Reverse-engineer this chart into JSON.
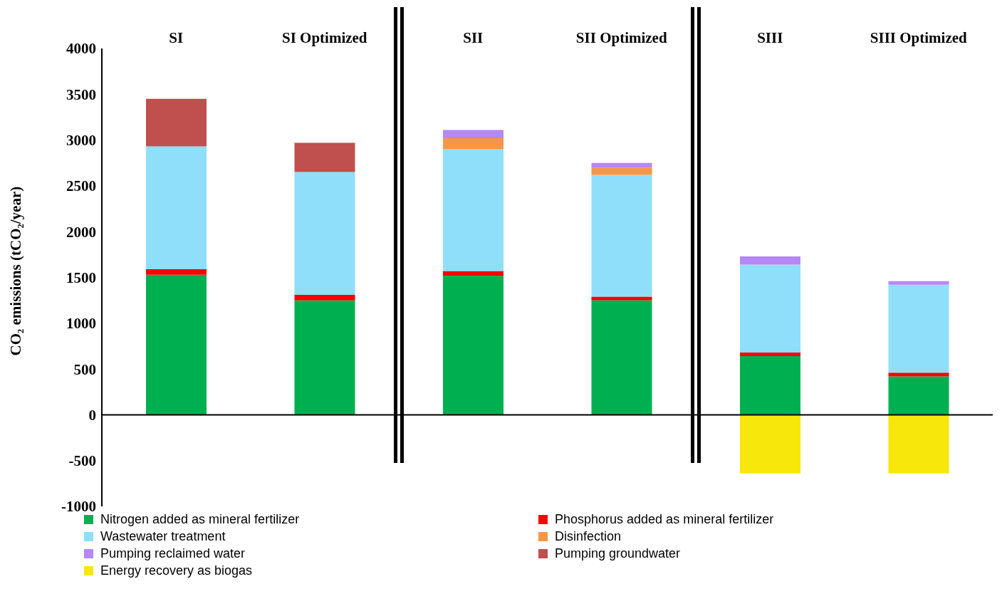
{
  "chart_data": {
    "type": "bar",
    "stacked": true,
    "ylabel": "CO₂ emissions (tCO₂/year)",
    "categories": [
      "SI",
      "SI Optimized",
      "SII",
      "SII Optimized",
      "SIII",
      "SIII Optimized"
    ],
    "series": [
      {
        "name": "Nitrogen added as mineral fertilizer",
        "color": "#00b050",
        "values": [
          1530,
          1250,
          1520,
          1250,
          640,
          420
        ]
      },
      {
        "name": "Phosphorus added as mineral fertilizer",
        "color": "#ff0000",
        "values": [
          60,
          60,
          50,
          40,
          40,
          40
        ]
      },
      {
        "name": "Wastewater treatment",
        "color": "#8fdffb",
        "values": [
          1340,
          1340,
          1330,
          1330,
          960,
          960
        ]
      },
      {
        "name": "Disinfection",
        "color": "#f79646",
        "values": [
          null,
          null,
          120,
          80,
          null,
          null
        ]
      },
      {
        "name": "Pumping reclaimed water",
        "color": "#b587f7",
        "values": [
          null,
          null,
          90,
          50,
          90,
          40
        ]
      },
      {
        "name": "Pumping groundwater",
        "color": "#c0504d",
        "values": [
          520,
          320,
          null,
          null,
          null,
          null
        ]
      },
      {
        "name": "Energy recovery as biogas",
        "color": "#f7e70a",
        "values": [
          null,
          null,
          null,
          null,
          -640,
          -640
        ]
      }
    ],
    "ylim": [
      -1000,
      4000
    ],
    "yticks": [
      -1000,
      -500,
      0,
      500,
      1000,
      1500,
      2000,
      2500,
      3000,
      3500,
      4000
    ],
    "ref_lines": [
      {
        "axis": "y",
        "value": 0
      }
    ],
    "grid": false,
    "legend": "bottom"
  }
}
